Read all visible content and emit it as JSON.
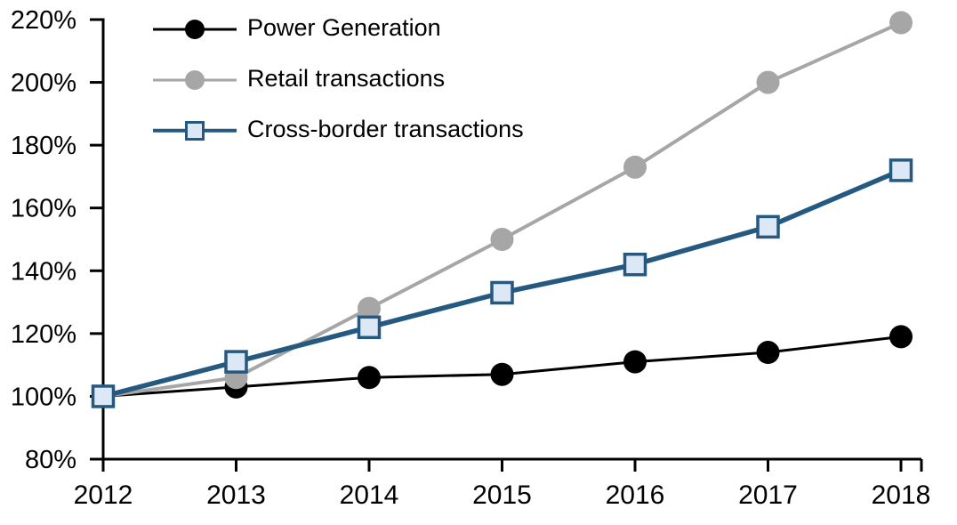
{
  "chart_data": {
    "type": "line",
    "title": "",
    "xlabel": "",
    "ylabel": "",
    "x": [
      2012,
      2013,
      2014,
      2015,
      2016,
      2017,
      2018
    ],
    "x_labels": [
      "2012",
      "2013",
      "2014",
      "2015",
      "2016",
      "2017",
      "2018"
    ],
    "ylim": [
      80,
      220
    ],
    "y_ticks": [
      80,
      100,
      120,
      140,
      160,
      180,
      200,
      220
    ],
    "y_tick_labels": [
      "80%",
      "100%",
      "120%",
      "140%",
      "160%",
      "180%",
      "200%",
      "220%"
    ],
    "y_tick_suffix": "%",
    "grid": false,
    "legend_position": "top-left-inside",
    "axis_color": "#000000",
    "background_color": "#ffffff",
    "series": [
      {
        "name": "Power Generation",
        "values": [
          100,
          103,
          106,
          107,
          111,
          114,
          119
        ],
        "color": "#000000",
        "marker": "circle",
        "marker_fill": "#000000",
        "line_width": 3
      },
      {
        "name": "Retail transactions",
        "values": [
          100,
          106,
          128,
          150,
          173,
          200,
          219
        ],
        "color": "#a6a6a6",
        "marker": "circle",
        "marker_fill": "#a6a6a6",
        "line_width": 4
      },
      {
        "name": "Cross-border transactions",
        "values": [
          100,
          111,
          122,
          133,
          142,
          154,
          172
        ],
        "color": "#255980",
        "marker": "square",
        "marker_fill": "#dce8f5",
        "line_width": 5.5
      }
    ]
  }
}
